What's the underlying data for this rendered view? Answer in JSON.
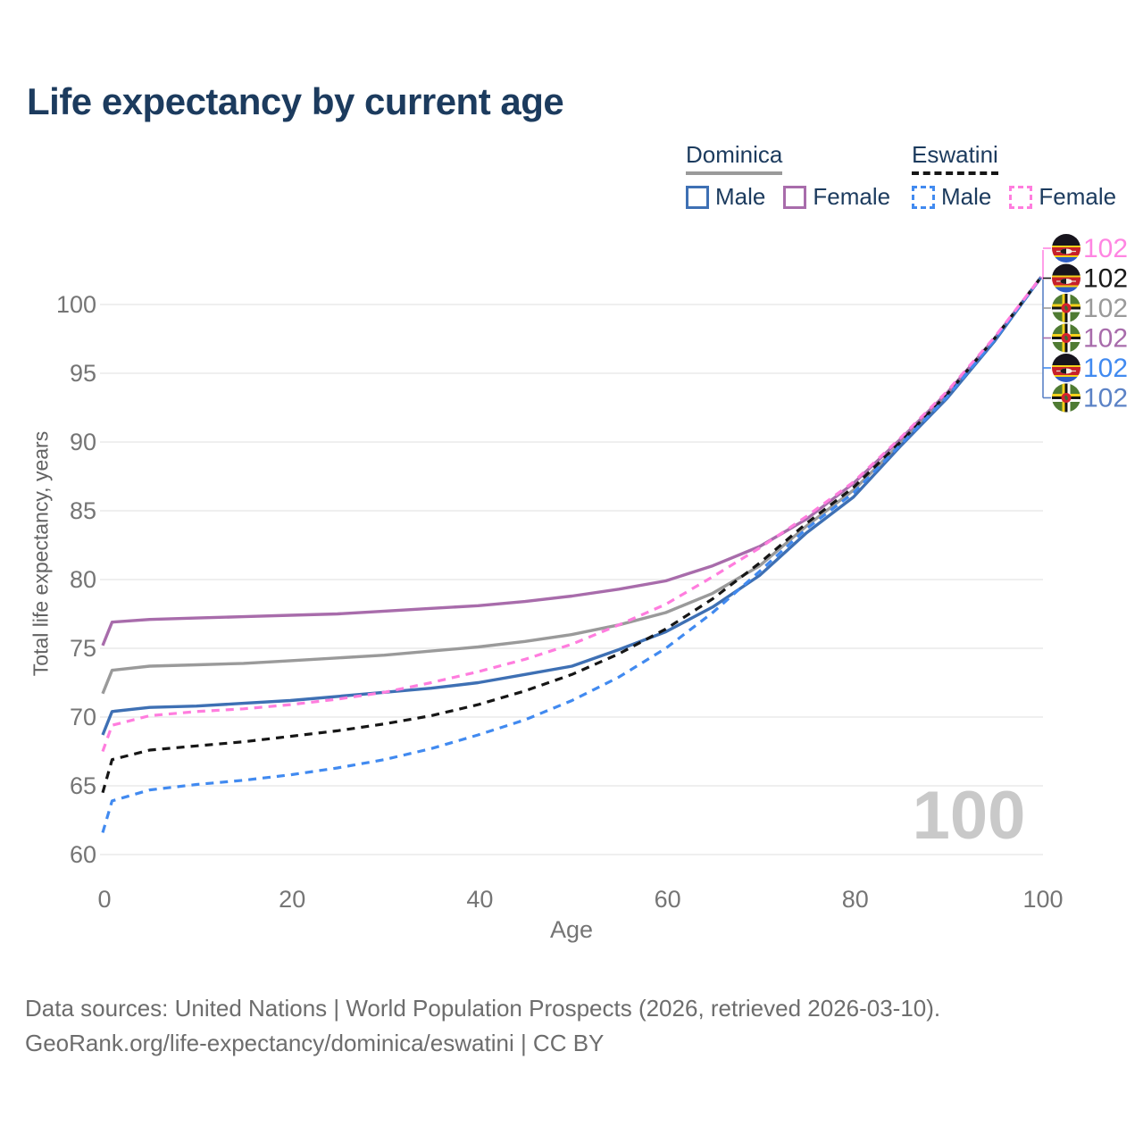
{
  "title": "Life expectancy by current age",
  "watermark": "100",
  "legend": {
    "groups": [
      {
        "country": "Dominica",
        "line_style": "solid",
        "line_color": "#9a9a9a",
        "items": [
          {
            "label": "Male",
            "color": "#3e70b4",
            "line_style": "solid"
          },
          {
            "label": "Female",
            "color": "#a86cab",
            "line_style": "solid"
          }
        ]
      },
      {
        "country": "Eswatini",
        "line_style": "dashed",
        "line_color": "#161616",
        "items": [
          {
            "label": "Male",
            "color": "#418af0",
            "line_style": "dashed"
          },
          {
            "label": "Female",
            "color": "#ff7dde",
            "line_style": "dashed"
          }
        ]
      }
    ]
  },
  "chart_data": {
    "type": "line",
    "title": "Life expectancy by current age",
    "xlabel": "Age",
    "ylabel": "Total life expectancy, years",
    "xlim": [
      0,
      100
    ],
    "ylim": [
      60,
      103
    ],
    "xticks": [
      0,
      20,
      40,
      60,
      80,
      100
    ],
    "yticks": [
      60,
      65,
      70,
      75,
      80,
      85,
      90,
      95,
      100
    ],
    "grid": "horizontal",
    "legend_position": "top-right",
    "x": [
      0,
      1,
      5,
      10,
      15,
      20,
      25,
      30,
      35,
      40,
      45,
      50,
      55,
      60,
      65,
      70,
      75,
      80,
      85,
      90,
      95,
      100
    ],
    "series": [
      {
        "name": "Dominica Both sexes",
        "country": "Dominica",
        "sex": "Both",
        "color": "#9a9a9a",
        "dashed": false,
        "values": [
          71.7,
          73.4,
          73.7,
          73.8,
          73.9,
          74.1,
          74.3,
          74.5,
          74.8,
          75.1,
          75.5,
          76.0,
          76.7,
          77.6,
          79.0,
          81.0,
          83.9,
          86.5,
          89.9,
          93.4,
          97.4,
          102
        ]
      },
      {
        "name": "Dominica Female",
        "country": "Dominica",
        "sex": "Female",
        "color": "#a86cab",
        "dashed": false,
        "values": [
          75.2,
          76.9,
          77.1,
          77.2,
          77.3,
          77.4,
          77.5,
          77.7,
          77.9,
          78.1,
          78.4,
          78.8,
          79.3,
          79.9,
          81.0,
          82.4,
          84.4,
          87.0,
          90.2,
          93.6,
          97.5,
          102
        ]
      },
      {
        "name": "Dominica Male",
        "country": "Dominica",
        "sex": "Male",
        "color": "#3e70b4",
        "dashed": false,
        "values": [
          68.7,
          70.4,
          70.7,
          70.8,
          71.0,
          71.2,
          71.5,
          71.8,
          72.1,
          72.5,
          73.1,
          73.7,
          74.9,
          76.2,
          78.0,
          80.3,
          83.4,
          86.0,
          89.7,
          93.2,
          97.3,
          102
        ]
      },
      {
        "name": "Eswatini Both sexes",
        "country": "Eswatini",
        "sex": "Both",
        "color": "#161616",
        "dashed": true,
        "values": [
          64.5,
          66.9,
          67.6,
          67.9,
          68.2,
          68.6,
          69.0,
          69.5,
          70.1,
          70.9,
          71.9,
          73.1,
          74.6,
          76.4,
          78.6,
          81.2,
          84.1,
          86.7,
          90.0,
          93.5,
          97.5,
          102
        ]
      },
      {
        "name": "Eswatini Male",
        "country": "Eswatini",
        "sex": "Male",
        "color": "#418af0",
        "dashed": true,
        "values": [
          61.6,
          63.9,
          64.7,
          65.1,
          65.4,
          65.8,
          66.3,
          66.9,
          67.7,
          68.7,
          69.8,
          71.2,
          72.9,
          75.0,
          77.6,
          80.6,
          83.7,
          86.3,
          89.8,
          93.3,
          97.4,
          102
        ]
      },
      {
        "name": "Eswatini Female",
        "country": "Eswatini",
        "sex": "Female",
        "color": "#ff7dde",
        "dashed": true,
        "values": [
          67.5,
          69.4,
          70.1,
          70.4,
          70.6,
          70.9,
          71.3,
          71.8,
          72.5,
          73.3,
          74.2,
          75.3,
          76.7,
          78.2,
          80.2,
          82.3,
          84.6,
          87.1,
          90.3,
          93.7,
          97.6,
          102
        ]
      }
    ],
    "end_labels": [
      {
        "series": "Eswatini Female",
        "flag": "eswatini",
        "value": "102",
        "color": "#ff85e2"
      },
      {
        "series": "Eswatini Both sexes",
        "flag": "eswatini",
        "value": "102",
        "color": "#1a1a1a"
      },
      {
        "series": "Dominica Both sexes",
        "flag": "dominica",
        "value": "102",
        "color": "#9a9a9a"
      },
      {
        "series": "Dominica Female",
        "flag": "dominica",
        "value": "102",
        "color": "#a86cab"
      },
      {
        "series": "Eswatini Male",
        "flag": "eswatini",
        "value": "102",
        "color": "#418af0"
      },
      {
        "series": "Dominica Male",
        "flag": "dominica",
        "value": "102",
        "color": "#5b82c6"
      }
    ]
  },
  "footer": {
    "line1": "Data sources: United Nations | World Population Prospects (2026, retrieved 2026-03-10).",
    "line2": "GeoRank.org/life-expectancy/dominica/eswatini | CC BY"
  }
}
